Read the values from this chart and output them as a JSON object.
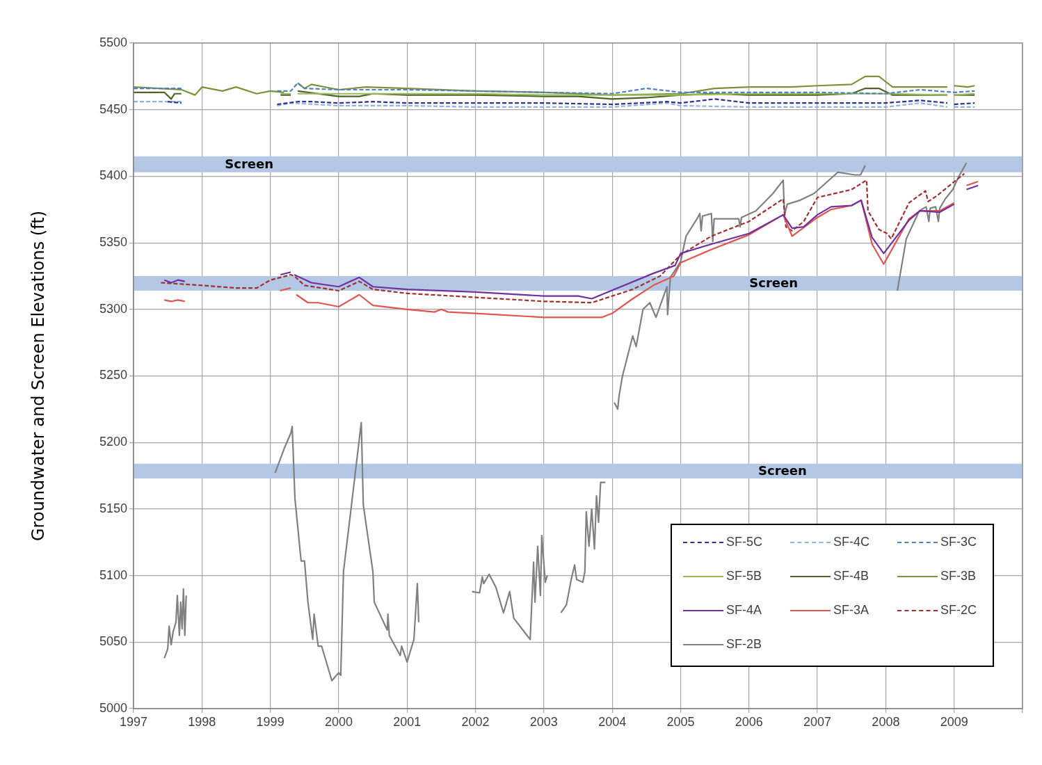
{
  "chart_data": {
    "type": "line",
    "ylabel": "Groundwater and Screen Elevations (ft)",
    "xlim": [
      1997,
      2010
    ],
    "xticks": [
      1997,
      1998,
      1999,
      2000,
      2001,
      2002,
      2003,
      2004,
      2005,
      2006,
      2007,
      2008,
      2009,
      {
        "value": 2010,
        "label": null
      }
    ],
    "ylim": [
      5000,
      5500
    ],
    "yticks": [
      5000,
      5050,
      5100,
      5150,
      5200,
      5250,
      5300,
      5350,
      5400,
      5450,
      5500
    ],
    "grid": true,
    "legend": "bottom right",
    "bands": [
      {
        "axis": "y",
        "from": 5403,
        "to": 5415,
        "label": "Screen",
        "color": "#b4c8e6"
      },
      {
        "axis": "y",
        "from": 5314,
        "to": 5325,
        "label": "Screen",
        "color": "#b4c8e6"
      },
      {
        "axis": "y",
        "from": 5173,
        "to": 5184,
        "label": "Screen",
        "color": "#b4c8e6"
      }
    ],
    "series": [
      {
        "name": "SF-5C",
        "color": "#2e3192",
        "line_style": "dashed",
        "x": [
          1997.5,
          1997.7,
          1998.4,
          1999.1,
          1999.4,
          1999.6,
          2000,
          2000.5,
          2001,
          2002,
          2003,
          2004,
          2004.8,
          2005,
          2005.5,
          2006,
          2007,
          2008,
          2008.5,
          2008.9,
          2008.95,
          2009.0,
          2009.3
        ],
        "values": [
          5456,
          5455,
          null,
          5454,
          5456,
          5456,
          5455,
          5456,
          5455,
          5455,
          5455,
          5454,
          5456,
          5455,
          5458,
          5455,
          5455,
          5455,
          5457,
          5455,
          null,
          5454,
          5455
        ]
      },
      {
        "name": "SF-4C",
        "color": "#8db3e2",
        "line_style": "dashed",
        "x": [
          1997.0,
          1997.7,
          1998.4,
          1999.1,
          1999.3,
          2000,
          2001,
          2002,
          2003,
          2004,
          2004.8,
          2005,
          2006,
          2007,
          2008,
          2008.5,
          2008.9,
          2008.95,
          2009.0,
          2009.3
        ],
        "values": [
          5456,
          5456,
          null,
          5453,
          5455,
          5453,
          5453,
          5452,
          5452,
          5452,
          5455,
          5453,
          5452,
          5452,
          5452,
          5455,
          5452,
          null,
          5452,
          5452
        ]
      },
      {
        "name": "SF-3C",
        "color": "#4f81bd",
        "line_style": "dashed",
        "x": [
          1997.0,
          1997.7,
          1998.4,
          1999.1,
          1999.3,
          1999.4,
          1999.5,
          2000,
          2001,
          2002,
          2003,
          2004,
          2004.5,
          2005,
          2006,
          2007,
          2008,
          2008.5,
          2009.0,
          2009.3
        ],
        "values": [
          5466,
          5466,
          null,
          5464,
          5464,
          5470,
          5466,
          5465,
          5465,
          5464,
          5463,
          5462,
          5466,
          5463,
          5463,
          5463,
          5462,
          5465,
          5463,
          5464
        ]
      },
      {
        "name": "SF-5B",
        "color": "#9bbb59",
        "line_style": "solid",
        "x": [
          1999.15,
          1999.3,
          1999.35,
          1999.4,
          2000,
          2001,
          2002,
          2003,
          2004,
          2005,
          2006,
          2007,
          2008,
          2008.9,
          2008.95,
          2009.0,
          2009.3
        ],
        "values": [
          5462,
          5462,
          null,
          5462,
          5462,
          5462,
          5462,
          5461,
          5461,
          5461,
          5462,
          5462,
          5462,
          5461,
          null,
          5461,
          5462
        ]
      },
      {
        "name": "SF-4B",
        "color": "#4f6228",
        "line_style": "solid",
        "x": [
          1997.0,
          1997.45,
          1997.55,
          1997.6,
          1997.7,
          1998.4,
          1999.15,
          1999.3,
          1999.35,
          1999.4,
          2000.0,
          2000.3,
          2000.5,
          2001,
          2002,
          2003,
          2003.5,
          2004,
          2004.5,
          2005,
          2005.5,
          2006,
          2007,
          2007.5,
          2007.7,
          2007.9,
          2008.1,
          2008.9,
          2008.95,
          2009.0,
          2009.3
        ],
        "values": [
          5463,
          5463,
          5458,
          5462,
          5462,
          null,
          5461,
          5461,
          null,
          5464,
          5460,
          5460,
          5462,
          5461,
          5461,
          5460,
          5460,
          5458,
          5459,
          5461,
          5462,
          5461,
          5461,
          5462,
          5466,
          5466,
          5461,
          5461,
          null,
          5461,
          5461
        ]
      },
      {
        "name": "SF-3B",
        "color": "#77933c",
        "line_style": "solid",
        "x": [
          1997.0,
          1997.7,
          1997.9,
          1998.0,
          1998.3,
          1998.5,
          1998.8,
          1999.0,
          1999.2,
          1999.3,
          1999.4,
          1999.5,
          1999.6,
          2000.0,
          2000.4,
          2001,
          2002,
          2003,
          2004,
          2005,
          2005.5,
          2006,
          2006.6,
          2007,
          2007.5,
          2007.7,
          2007.9,
          2008.1,
          2008.5,
          2008.9,
          2008.95,
          2009.0,
          2009.2,
          2009.3
        ],
        "values": [
          5467,
          5465,
          5461,
          5467,
          5464,
          5467,
          5462,
          5464,
          5463,
          null,
          5470,
          5466,
          5469,
          5465,
          5467,
          5466,
          5464,
          5463,
          5461,
          5462,
          5466,
          5467,
          5467,
          5468,
          5469,
          5475,
          5475,
          5467,
          5467,
          5467,
          null,
          5468,
          5467,
          5468
        ]
      },
      {
        "name": "SF-4A",
        "color": "#7030a0",
        "line_style": "solid",
        "x": [
          1997.45,
          1997.55,
          1997.65,
          1997.75,
          1998.4,
          1999.15,
          1999.3,
          1999.32,
          1999.35,
          1999.6,
          2000,
          2000.3,
          2000.5,
          2001,
          2002,
          2003,
          2003.5,
          2003.7,
          2004.6,
          2004.92,
          2005,
          2005.45,
          2006,
          2006.5,
          2006.63,
          2006.8,
          2007,
          2007.2,
          2007.5,
          2007.64,
          2007.8,
          2007.97,
          2008.34,
          2008.5,
          2008.79,
          2009.0,
          2009.1,
          2009.18,
          2009.35
        ],
        "values": [
          5322,
          5320,
          5322,
          5321,
          null,
          5326,
          5328,
          null,
          5326,
          5320,
          5317,
          5324,
          5317,
          5315,
          5313,
          5310,
          5310,
          5308,
          5327,
          5333,
          5342,
          5349,
          5357,
          5371,
          5361,
          5362,
          5371,
          5377,
          5378,
          5382,
          5354,
          5342,
          5367,
          5374,
          5373,
          5379,
          null,
          5390,
          5393
        ]
      },
      {
        "name": "SF-3A",
        "color": "#e0554f",
        "line_style": "solid",
        "x": [
          1997.45,
          1997.55,
          1997.65,
          1997.75,
          1998.4,
          1999.14,
          1999.3,
          1999.34,
          1999.38,
          1999.55,
          1999.7,
          2000,
          2000.3,
          2000.5,
          2001,
          2001.4,
          2001.5,
          2001.6,
          2002,
          2003,
          2003.5,
          2003.85,
          2004.0,
          2004.3,
          2004.6,
          2004.9,
          2005,
          2005.45,
          2006,
          2006.5,
          2006.63,
          2007,
          2007.2,
          2007.5,
          2007.64,
          2007.8,
          2007.97,
          2008.34,
          2008.5,
          2008.79,
          2009.0,
          2009.1,
          2009.18,
          2009.35
        ],
        "values": [
          5307,
          5306,
          5307,
          5306,
          null,
          5314,
          5316,
          null,
          5311,
          5305,
          5305,
          5302,
          5311,
          5303,
          5300,
          5298,
          5300,
          5298,
          5297,
          5294,
          5294,
          5294,
          5297,
          5308,
          5318,
          5325,
          5335,
          5345,
          5356,
          5371,
          5355,
          5369,
          5375,
          5378,
          5382,
          5349,
          5334,
          5368,
          5374,
          5374,
          5380,
          null,
          5393,
          5396
        ]
      },
      {
        "name": "SF-2C",
        "color": "#a0302f",
        "line_style": "dashed",
        "x": [
          1997.4,
          1998,
          1998.5,
          1998.8,
          1999.0,
          1999.3,
          1999.35,
          1999.5,
          2000,
          2000.3,
          2000.5,
          2001,
          2002,
          2003,
          2003.7,
          2004.3,
          2004.7,
          2005,
          2005.45,
          2006,
          2006.5,
          2006.54,
          2006.63,
          2006.8,
          2007,
          2007.5,
          2007.72,
          2007.74,
          2007.9,
          2008.02,
          2008.08,
          2008.34,
          2008.58,
          2008.62,
          2008.74,
          2008.98,
          2009.15
        ],
        "values": [
          5320,
          5318,
          5316,
          5316,
          5322,
          5326,
          5325,
          5318,
          5314,
          5321,
          5315,
          5312,
          5309,
          5306,
          5305,
          5315,
          5325,
          5341,
          5355,
          5366,
          5383,
          5362,
          5359,
          5366,
          5384,
          5390,
          5397,
          5374,
          5360,
          5357,
          5353,
          5380,
          5389,
          5381,
          5385,
          5395,
          5402
        ]
      },
      {
        "name": "SF-2B",
        "color": "#808080",
        "line_style": "solid",
        "x": [
          1997.45,
          1997.5,
          1997.52,
          1997.55,
          1997.58,
          1997.62,
          1997.64,
          1997.67,
          1997.69,
          1997.71,
          1997.73,
          1997.75,
          1997.77,
          1998.4,
          1999.07,
          1999.2,
          1999.3,
          1999.32,
          1999.36,
          1999.45,
          1999.5,
          1999.55,
          1999.62,
          1999.64,
          1999.7,
          1999.75,
          1999.9,
          2000.0,
          2000.03,
          2000.07,
          2000.18,
          2000.33,
          2000.36,
          2000.5,
          2000.52,
          2000.71,
          2000.72,
          2000.74,
          2000.9,
          2000.92,
          2001.0,
          2001.1,
          2001.15,
          2001.17,
          2001.5,
          2001.95,
          2002.06,
          2002.1,
          2002.12,
          2002.2,
          2002.3,
          2002.41,
          2002.5,
          2002.56,
          2002.8,
          2002.85,
          2002.87,
          2002.91,
          2002.95,
          2002.97,
          2003.02,
          2003.05,
          2003.15,
          2003.25,
          2003.33,
          2003.4,
          2003.45,
          2003.48,
          2003.57,
          2003.6,
          2003.62,
          2003.66,
          2003.7,
          2003.74,
          2003.77,
          2003.8,
          2003.83,
          2003.9,
          2003.97,
          2004.03,
          2004.08,
          2004.1,
          2004.15,
          2004.3,
          2004.35,
          2004.45,
          2004.55,
          2004.64,
          2004.8,
          2004.81,
          2004.85,
          2004.94,
          2005.0,
          2005.08,
          2005.24,
          2005.28,
          2005.3,
          2005.32,
          2005.45,
          2005.47,
          2005.49,
          2005.85,
          2005.87,
          2005.89,
          2006.1,
          2006.35,
          2006.5,
          2006.52,
          2006.56,
          2006.75,
          2006.95,
          2007.3,
          2007.55,
          2007.63,
          2007.7,
          2007.9,
          2008.17,
          2008.3,
          2008.49,
          2008.59,
          2008.63,
          2008.65,
          2008.73,
          2008.77,
          2008.79,
          2008.87,
          2008.98,
          2009.06,
          2009.18
        ],
        "values": [
          5038,
          5045,
          5062,
          5048,
          5058,
          5065,
          5085,
          5055,
          5080,
          5060,
          5090,
          5055,
          5085,
          null,
          5177,
          5195,
          5207,
          5212,
          5158,
          5111,
          5111,
          5080,
          5052,
          5071,
          5047,
          5047,
          5021,
          5027,
          5025,
          5103,
          5150,
          5215,
          5153,
          5103,
          5080,
          5059,
          5071,
          5055,
          5040,
          5047,
          5035,
          5052,
          5094,
          5065,
          null,
          5088,
          5087,
          5099,
          5094,
          5101,
          5091,
          5072,
          5088,
          5068,
          5052,
          5110,
          5080,
          5122,
          5085,
          5130,
          5095,
          5100,
          null,
          5072,
          5078,
          5097,
          5108,
          5097,
          5095,
          5103,
          5148,
          5122,
          5150,
          5120,
          5160,
          5140,
          5170,
          5170,
          null,
          5230,
          5225,
          5235,
          5250,
          5280,
          5272,
          5300,
          5305,
          5294,
          5317,
          5296,
          5324,
          5331,
          5336,
          5355,
          5368,
          5372,
          5359,
          5370,
          5372,
          5351,
          5368,
          5368,
          5362,
          5369,
          5374,
          5387,
          5397,
          5371,
          5379,
          5382,
          5387,
          5403,
          5401,
          5401,
          5408,
          null,
          5314,
          5353,
          5374,
          5377,
          5366,
          5376,
          5377,
          5366,
          5376,
          5383,
          5390,
          5399,
          5410
        ]
      }
    ]
  }
}
